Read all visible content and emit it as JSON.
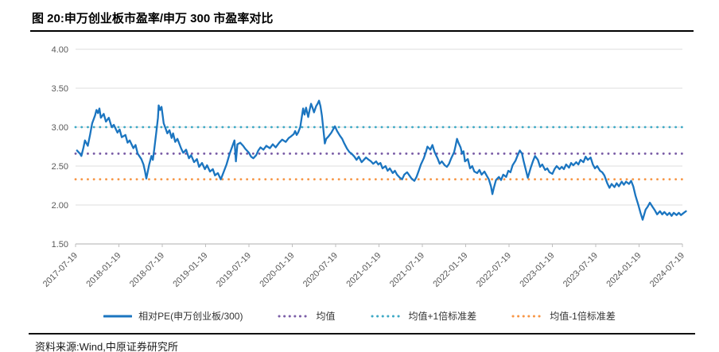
{
  "figure": {
    "source": "资料来源:Wind,中原证券研究所"
  },
  "colors": {
    "series_blue": "#1B75C0",
    "mean_purple": "#7B5EA7",
    "upper_teal": "#3EA9C5",
    "lower_orange": "#F79646",
    "gridline": "#DCDCDC",
    "axis": "#BFBFBF",
    "axis_label": "#595959",
    "rule_black": "#000000"
  },
  "chart_data": {
    "type": "line",
    "title": "图 20:申万创业板市盈率/申万 300 市盈率对比",
    "xlabel": "",
    "ylabel": "",
    "ylim": [
      1.5,
      4.0
    ],
    "grid": true,
    "legend_position": "bottom",
    "y_tick_labels": [
      "4.00",
      "3.50",
      "3.00",
      "2.50",
      "2.00",
      "1.50"
    ],
    "y_tick_values": [
      4.0,
      3.5,
      3.0,
      2.5,
      2.0,
      1.5
    ],
    "x_tick_labels": [
      "2017-07-19",
      "2018-01-19",
      "2018-07-19",
      "2019-01-19",
      "2019-07-19",
      "2020-01-19",
      "2020-07-19",
      "2021-01-19",
      "2021-07-19",
      "2022-01-19",
      "2022-07-19",
      "2023-01-19",
      "2023-07-19",
      "2024-01-19",
      "2024-07-19"
    ],
    "x_unit": "months since 2017-07-19, axis span 0-84",
    "x_span_months": 84,
    "series": [
      {
        "name": "相对PE(申万创业板/300)",
        "style": "solid",
        "color": "#1B75C0",
        "points": [
          [
            0.2,
            2.7
          ],
          [
            0.6,
            2.66
          ],
          [
            0.8,
            2.63
          ],
          [
            1.1,
            2.74
          ],
          [
            1.3,
            2.83
          ],
          [
            1.7,
            2.76
          ],
          [
            2.0,
            2.9
          ],
          [
            2.3,
            3.05
          ],
          [
            2.7,
            3.15
          ],
          [
            2.9,
            3.22
          ],
          [
            3.1,
            3.18
          ],
          [
            3.3,
            3.24
          ],
          [
            3.5,
            3.12
          ],
          [
            3.9,
            3.17
          ],
          [
            4.2,
            3.07
          ],
          [
            4.6,
            3.12
          ],
          [
            5.0,
            3.0
          ],
          [
            5.3,
            3.03
          ],
          [
            5.8,
            2.93
          ],
          [
            6.1,
            2.97
          ],
          [
            6.4,
            2.87
          ],
          [
            6.9,
            2.9
          ],
          [
            7.2,
            2.8
          ],
          [
            7.5,
            2.83
          ],
          [
            8.0,
            2.73
          ],
          [
            8.3,
            2.77
          ],
          [
            8.6,
            2.66
          ],
          [
            9.1,
            2.59
          ],
          [
            9.4,
            2.52
          ],
          [
            9.6,
            2.44
          ],
          [
            9.8,
            2.34
          ],
          [
            10.2,
            2.52
          ],
          [
            10.5,
            2.63
          ],
          [
            10.7,
            2.58
          ],
          [
            10.9,
            2.72
          ],
          [
            11.2,
            2.95
          ],
          [
            11.4,
            3.12
          ],
          [
            11.5,
            3.28
          ],
          [
            11.7,
            3.22
          ],
          [
            11.9,
            3.26
          ],
          [
            12.2,
            3.05
          ],
          [
            12.4,
            3.0
          ],
          [
            12.7,
            2.92
          ],
          [
            13.0,
            2.96
          ],
          [
            13.3,
            2.86
          ],
          [
            13.5,
            2.92
          ],
          [
            13.8,
            2.81
          ],
          [
            14.1,
            2.85
          ],
          [
            14.6,
            2.73
          ],
          [
            14.9,
            2.67
          ],
          [
            15.3,
            2.71
          ],
          [
            15.7,
            2.6
          ],
          [
            16.0,
            2.64
          ],
          [
            16.4,
            2.55
          ],
          [
            16.8,
            2.59
          ],
          [
            17.1,
            2.49
          ],
          [
            17.5,
            2.54
          ],
          [
            17.9,
            2.46
          ],
          [
            18.2,
            2.51
          ],
          [
            18.6,
            2.43
          ],
          [
            19.0,
            2.46
          ],
          [
            19.3,
            2.38
          ],
          [
            19.7,
            2.41
          ],
          [
            20.1,
            2.33
          ],
          [
            20.4,
            2.4
          ],
          [
            20.9,
            2.52
          ],
          [
            21.3,
            2.65
          ],
          [
            21.8,
            2.78
          ],
          [
            22.0,
            2.83
          ],
          [
            22.2,
            2.56
          ],
          [
            22.4,
            2.78
          ],
          [
            22.8,
            2.8
          ],
          [
            23.2,
            2.76
          ],
          [
            23.5,
            2.72
          ],
          [
            24.0,
            2.67
          ],
          [
            24.3,
            2.62
          ],
          [
            24.6,
            2.6
          ],
          [
            25.0,
            2.64
          ],
          [
            25.3,
            2.7
          ],
          [
            25.6,
            2.74
          ],
          [
            26.0,
            2.71
          ],
          [
            26.4,
            2.76
          ],
          [
            26.9,
            2.73
          ],
          [
            27.3,
            2.78
          ],
          [
            27.7,
            2.74
          ],
          [
            28.2,
            2.8
          ],
          [
            28.6,
            2.84
          ],
          [
            29.1,
            2.81
          ],
          [
            29.5,
            2.86
          ],
          [
            29.8,
            2.88
          ],
          [
            30.2,
            2.91
          ],
          [
            30.4,
            2.95
          ],
          [
            30.6,
            2.9
          ],
          [
            30.8,
            2.93
          ],
          [
            31.1,
            3.0
          ],
          [
            31.3,
            3.12
          ],
          [
            31.5,
            3.24
          ],
          [
            31.7,
            3.16
          ],
          [
            31.9,
            3.25
          ],
          [
            32.2,
            3.13
          ],
          [
            32.4,
            3.22
          ],
          [
            32.6,
            3.3
          ],
          [
            32.8,
            3.25
          ],
          [
            33.0,
            3.19
          ],
          [
            33.3,
            3.27
          ],
          [
            33.5,
            3.3
          ],
          [
            33.7,
            3.34
          ],
          [
            33.9,
            3.27
          ],
          [
            34.1,
            3.15
          ],
          [
            34.4,
            2.88
          ],
          [
            34.5,
            2.79
          ],
          [
            34.7,
            2.85
          ],
          [
            35.0,
            2.88
          ],
          [
            35.4,
            2.93
          ],
          [
            35.7,
            2.98
          ],
          [
            35.9,
            3.01
          ],
          [
            36.2,
            2.95
          ],
          [
            36.6,
            2.89
          ],
          [
            36.9,
            2.85
          ],
          [
            37.2,
            2.79
          ],
          [
            37.6,
            2.72
          ],
          [
            37.9,
            2.68
          ],
          [
            38.2,
            2.66
          ],
          [
            38.6,
            2.62
          ],
          [
            38.9,
            2.58
          ],
          [
            39.2,
            2.62
          ],
          [
            39.6,
            2.55
          ],
          [
            39.9,
            2.58
          ],
          [
            40.2,
            2.61
          ],
          [
            40.6,
            2.58
          ],
          [
            40.9,
            2.56
          ],
          [
            41.2,
            2.53
          ],
          [
            41.6,
            2.56
          ],
          [
            41.9,
            2.52
          ],
          [
            42.2,
            2.54
          ],
          [
            42.5,
            2.47
          ],
          [
            42.9,
            2.5
          ],
          [
            43.2,
            2.44
          ],
          [
            43.5,
            2.47
          ],
          [
            43.9,
            2.41
          ],
          [
            44.2,
            2.44
          ],
          [
            44.5,
            2.39
          ],
          [
            44.9,
            2.35
          ],
          [
            45.2,
            2.33
          ],
          [
            45.5,
            2.39
          ],
          [
            45.9,
            2.42
          ],
          [
            46.2,
            2.38
          ],
          [
            46.5,
            2.34
          ],
          [
            46.9,
            2.31
          ],
          [
            47.2,
            2.36
          ],
          [
            47.5,
            2.44
          ],
          [
            47.8,
            2.52
          ],
          [
            48.2,
            2.6
          ],
          [
            48.5,
            2.68
          ],
          [
            48.7,
            2.75
          ],
          [
            49.1,
            2.71
          ],
          [
            49.4,
            2.77
          ],
          [
            49.7,
            2.68
          ],
          [
            50.1,
            2.6
          ],
          [
            50.4,
            2.53
          ],
          [
            50.7,
            2.56
          ],
          [
            51.1,
            2.51
          ],
          [
            51.4,
            2.49
          ],
          [
            51.7,
            2.53
          ],
          [
            52.0,
            2.6
          ],
          [
            52.4,
            2.68
          ],
          [
            52.6,
            2.76
          ],
          [
            52.8,
            2.85
          ],
          [
            53.0,
            2.8
          ],
          [
            53.3,
            2.74
          ],
          [
            53.5,
            2.66
          ],
          [
            53.7,
            2.69
          ],
          [
            53.9,
            2.56
          ],
          [
            54.3,
            2.59
          ],
          [
            54.6,
            2.47
          ],
          [
            54.9,
            2.5
          ],
          [
            55.2,
            2.43
          ],
          [
            55.6,
            2.41
          ],
          [
            55.9,
            2.45
          ],
          [
            56.2,
            2.39
          ],
          [
            56.6,
            2.43
          ],
          [
            56.9,
            2.38
          ],
          [
            57.2,
            2.33
          ],
          [
            57.5,
            2.24
          ],
          [
            57.7,
            2.14
          ],
          [
            57.9,
            2.22
          ],
          [
            58.2,
            2.32
          ],
          [
            58.6,
            2.36
          ],
          [
            58.9,
            2.32
          ],
          [
            59.2,
            2.39
          ],
          [
            59.6,
            2.36
          ],
          [
            59.9,
            2.44
          ],
          [
            60.2,
            2.42
          ],
          [
            60.5,
            2.51
          ],
          [
            60.9,
            2.57
          ],
          [
            61.2,
            2.64
          ],
          [
            61.5,
            2.7
          ],
          [
            61.8,
            2.66
          ],
          [
            62.0,
            2.57
          ],
          [
            62.3,
            2.46
          ],
          [
            62.6,
            2.35
          ],
          [
            63.0,
            2.48
          ],
          [
            63.3,
            2.56
          ],
          [
            63.6,
            2.63
          ],
          [
            64.0,
            2.58
          ],
          [
            64.3,
            2.49
          ],
          [
            64.6,
            2.52
          ],
          [
            65.0,
            2.45
          ],
          [
            65.3,
            2.47
          ],
          [
            65.6,
            2.42
          ],
          [
            66.0,
            2.4
          ],
          [
            66.3,
            2.46
          ],
          [
            66.6,
            2.5
          ],
          [
            67.0,
            2.46
          ],
          [
            67.3,
            2.49
          ],
          [
            67.6,
            2.46
          ],
          [
            67.9,
            2.52
          ],
          [
            68.3,
            2.48
          ],
          [
            68.6,
            2.54
          ],
          [
            68.9,
            2.51
          ],
          [
            69.3,
            2.55
          ],
          [
            69.6,
            2.52
          ],
          [
            69.9,
            2.58
          ],
          [
            70.3,
            2.55
          ],
          [
            70.6,
            2.62
          ],
          [
            70.9,
            2.58
          ],
          [
            71.3,
            2.61
          ],
          [
            71.6,
            2.52
          ],
          [
            71.9,
            2.47
          ],
          [
            72.2,
            2.5
          ],
          [
            72.6,
            2.44
          ],
          [
            72.9,
            2.42
          ],
          [
            73.2,
            2.38
          ],
          [
            73.6,
            2.28
          ],
          [
            73.9,
            2.22
          ],
          [
            74.2,
            2.27
          ],
          [
            74.6,
            2.23
          ],
          [
            74.9,
            2.28
          ],
          [
            75.2,
            2.24
          ],
          [
            75.6,
            2.3
          ],
          [
            75.9,
            2.26
          ],
          [
            76.2,
            2.3
          ],
          [
            76.6,
            2.27
          ],
          [
            76.9,
            2.31
          ],
          [
            77.2,
            2.24
          ],
          [
            77.5,
            2.12
          ],
          [
            77.9,
            2.0
          ],
          [
            78.2,
            1.9
          ],
          [
            78.5,
            1.81
          ],
          [
            78.9,
            1.94
          ],
          [
            79.2,
            1.98
          ],
          [
            79.5,
            2.03
          ],
          [
            79.9,
            1.97
          ],
          [
            80.2,
            1.93
          ],
          [
            80.5,
            1.88
          ],
          [
            80.9,
            1.92
          ],
          [
            81.2,
            1.88
          ],
          [
            81.5,
            1.91
          ],
          [
            81.9,
            1.87
          ],
          [
            82.2,
            1.9
          ],
          [
            82.5,
            1.86
          ],
          [
            82.8,
            1.9
          ],
          [
            83.2,
            1.87
          ],
          [
            83.5,
            1.9
          ],
          [
            83.8,
            1.87
          ],
          [
            84.2,
            1.9
          ],
          [
            84.5,
            1.92
          ]
        ]
      },
      {
        "name": "均值",
        "style": "dotted",
        "color": "#7B5EA7",
        "value": 2.66
      },
      {
        "name": "均值+1倍标准差",
        "style": "dotted",
        "color": "#3EA9C5",
        "value": 3.0
      },
      {
        "name": "均值-1倍标准差",
        "style": "dotted",
        "color": "#F79646",
        "value": 2.33
      }
    ]
  }
}
